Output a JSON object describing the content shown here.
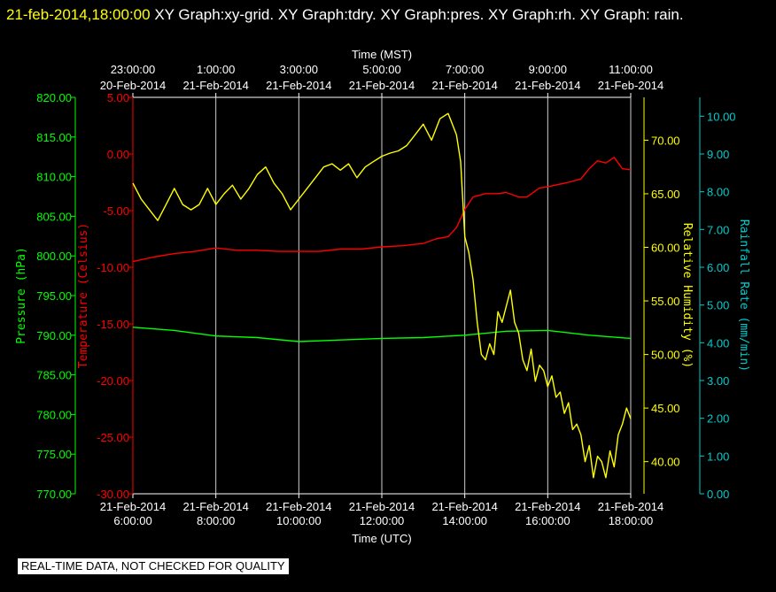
{
  "header": {
    "timestamp": "21-feb-2014,18:00:00",
    "graphs": [
      "XY Graph:xy-grid.",
      "XY Graph:tdry.",
      "XY Graph:pres.",
      "XY Graph:rh.",
      "XY Graph:",
      "rain."
    ]
  },
  "banner": "REAL-TIME DATA, NOT CHECKED FOR QUALITY",
  "chart_data": {
    "type": "line",
    "grid": "vertical only",
    "top_axis": {
      "label": "Time (MST)",
      "ticks": [
        [
          "23:00:00",
          "20-Feb-2014"
        ],
        [
          "1:00:00",
          "21-Feb-2014"
        ],
        [
          "3:00:00",
          "21-Feb-2014"
        ],
        [
          "5:00:00",
          "21-Feb-2014"
        ],
        [
          "7:00:00",
          "21-Feb-2014"
        ],
        [
          "9:00:00",
          "21-Feb-2014"
        ],
        [
          "11:00:00",
          "21-Feb-2014"
        ]
      ]
    },
    "bottom_axis": {
      "label": "Time (UTC)",
      "range": [
        6,
        18
      ],
      "ticks": [
        [
          "21-Feb-2014",
          "6:00:00"
        ],
        [
          "21-Feb-2014",
          "8:00:00"
        ],
        [
          "21-Feb-2014",
          "10:00:00"
        ],
        [
          "21-Feb-2014",
          "12:00:00"
        ],
        [
          "21-Feb-2014",
          "14:00:00"
        ],
        [
          "21-Feb-2014",
          "16:00:00"
        ],
        [
          "21-Feb-2014",
          "18:00:00"
        ]
      ]
    },
    "axes": {
      "pressure": {
        "label": "Pressure (hPa)",
        "color": "#00ff00",
        "range": [
          770,
          820
        ],
        "ticks": [
          "770.00",
          "775.00",
          "780.00",
          "785.00",
          "790.00",
          "795.00",
          "800.00",
          "805.00",
          "810.00",
          "815.00",
          "820.00"
        ]
      },
      "temperature": {
        "label": "Temperature (Celsius)",
        "color": "#ff0000",
        "range": [
          -30,
          5
        ],
        "ticks": [
          "-30.00",
          "-25.00",
          "-20.00",
          "-15.00",
          "-10.00",
          "-5.00",
          "0.00",
          "5.00"
        ]
      },
      "humidity": {
        "label": "Relative Humidity (%)",
        "color": "#ffff00",
        "range": [
          37,
          74
        ],
        "ticks": [
          "40.00",
          "45.00",
          "50.00",
          "55.00",
          "60.00",
          "65.00",
          "70.00"
        ]
      },
      "rainfall": {
        "label": "Rainfall Rate (mm/min)",
        "color": "#00cccc",
        "range": [
          0,
          10.5
        ],
        "ticks": [
          "0.00",
          "1.00",
          "2.00",
          "3.00",
          "4.00",
          "5.00",
          "6.00",
          "7.00",
          "8.00",
          "9.00",
          "10.00"
        ]
      }
    },
    "series": [
      {
        "axis": "temperature",
        "color": "#ff0000",
        "x": [
          6.0,
          6.5,
          7.0,
          7.5,
          8.0,
          8.5,
          9.0,
          9.5,
          10.0,
          10.5,
          11.0,
          11.5,
          12.0,
          12.5,
          13.0,
          13.3,
          13.6,
          13.8,
          14.0,
          14.2,
          14.5,
          14.8,
          15.0,
          15.3,
          15.5,
          15.8,
          16.0,
          16.5,
          16.8,
          17.0,
          17.2,
          17.4,
          17.6,
          17.8,
          18.0
        ],
        "y": [
          -9.5,
          -9.1,
          -8.8,
          -8.6,
          -8.3,
          -8.5,
          -8.5,
          -8.6,
          -8.6,
          -8.6,
          -8.4,
          -8.4,
          -8.2,
          -8.1,
          -7.9,
          -7.5,
          -7.3,
          -6.5,
          -4.9,
          -3.8,
          -3.5,
          -3.5,
          -3.4,
          -3.8,
          -3.8,
          -3.0,
          -2.9,
          -2.5,
          -2.2,
          -1.3,
          -0.6,
          -0.8,
          -0.3,
          -1.3,
          -1.4
        ]
      },
      {
        "axis": "pressure",
        "color": "#00ff00",
        "x": [
          6.0,
          7.0,
          8.0,
          9.0,
          10.0,
          11.0,
          12.0,
          13.0,
          14.0,
          15.0,
          16.0,
          17.0,
          18.0
        ],
        "y": [
          791.0,
          790.6,
          789.9,
          789.7,
          789.2,
          789.4,
          789.6,
          789.7,
          790.0,
          790.5,
          790.6,
          790.0,
          789.6
        ]
      },
      {
        "axis": "humidity",
        "color": "#ffff00",
        "x": [
          6.0,
          6.2,
          6.4,
          6.6,
          6.8,
          7.0,
          7.2,
          7.4,
          7.6,
          7.8,
          8.0,
          8.2,
          8.4,
          8.6,
          8.8,
          9.0,
          9.2,
          9.4,
          9.6,
          9.8,
          10.0,
          10.2,
          10.4,
          10.6,
          10.8,
          11.0,
          11.2,
          11.4,
          11.6,
          11.8,
          12.0,
          12.2,
          12.4,
          12.6,
          12.8,
          13.0,
          13.2,
          13.4,
          13.6,
          13.8,
          13.9,
          14.0,
          14.1,
          14.2,
          14.3,
          14.4,
          14.5,
          14.6,
          14.7,
          14.8,
          14.9,
          15.0,
          15.1,
          15.2,
          15.3,
          15.4,
          15.5,
          15.6,
          15.7,
          15.8,
          15.9,
          16.0,
          16.1,
          16.2,
          16.3,
          16.4,
          16.5,
          16.6,
          16.7,
          16.8,
          16.9,
          17.0,
          17.1,
          17.2,
          17.3,
          17.4,
          17.5,
          17.6,
          17.7,
          17.8,
          17.9,
          18.0
        ],
        "y": [
          66.0,
          64.5,
          63.5,
          62.5,
          64.0,
          65.5,
          64.0,
          63.5,
          64.0,
          65.5,
          64.0,
          65.0,
          65.8,
          64.5,
          65.5,
          66.8,
          67.5,
          66.0,
          65.0,
          63.5,
          64.5,
          65.5,
          66.5,
          67.5,
          67.8,
          67.2,
          67.8,
          66.5,
          67.5,
          68.0,
          68.5,
          68.8,
          69.0,
          69.5,
          70.5,
          71.5,
          70.0,
          72.0,
          72.5,
          70.5,
          68.0,
          61.0,
          59.5,
          57.0,
          53.0,
          50.0,
          49.5,
          51.0,
          50.0,
          54.0,
          53.0,
          54.5,
          56.0,
          53.0,
          52.0,
          49.5,
          48.5,
          50.5,
          47.5,
          49.0,
          48.5,
          47.0,
          48.0,
          46.0,
          46.5,
          44.5,
          45.5,
          43.0,
          43.5,
          42.5,
          40.0,
          41.5,
          38.5,
          40.5,
          40.0,
          38.5,
          41.0,
          39.5,
          42.5,
          43.5,
          45.0,
          44.0
        ]
      },
      {
        "axis": "rainfall",
        "color": "#00cccc",
        "x": [],
        "y": []
      }
    ]
  }
}
